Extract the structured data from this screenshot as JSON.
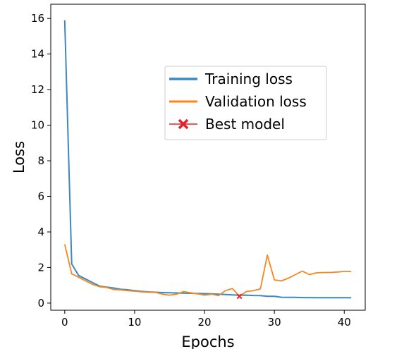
{
  "chart_data": {
    "type": "line",
    "xlabel": "Epochs",
    "ylabel": "Loss",
    "xlim": [
      -2,
      43
    ],
    "ylim": [
      -0.4,
      16.8
    ],
    "xticks": [
      0,
      10,
      20,
      30,
      40
    ],
    "yticks": [
      0,
      2,
      4,
      6,
      8,
      10,
      12,
      14,
      16
    ],
    "grid": false,
    "legend_position": "center-right",
    "series": [
      {
        "name": "Training loss",
        "color": "#3b88c3",
        "x": [
          0,
          1,
          2,
          3,
          4,
          5,
          6,
          7,
          8,
          9,
          10,
          11,
          12,
          13,
          14,
          15,
          16,
          17,
          18,
          19,
          20,
          21,
          22,
          23,
          24,
          25,
          26,
          27,
          28,
          29,
          30,
          31,
          32,
          33,
          34,
          35,
          36,
          37,
          38,
          39,
          40,
          41
        ],
        "values": [
          15.9,
          2.2,
          1.55,
          1.35,
          1.15,
          0.95,
          0.9,
          0.85,
          0.78,
          0.75,
          0.7,
          0.66,
          0.63,
          0.61,
          0.59,
          0.58,
          0.57,
          0.56,
          0.55,
          0.54,
          0.53,
          0.52,
          0.5,
          0.48,
          0.46,
          0.44,
          0.45,
          0.43,
          0.42,
          0.38,
          0.38,
          0.33,
          0.32,
          0.32,
          0.31,
          0.31,
          0.3,
          0.3,
          0.3,
          0.3,
          0.3,
          0.3
        ]
      },
      {
        "name": "Validation loss",
        "color": "#f5871f",
        "x": [
          0,
          1,
          2,
          3,
          4,
          5,
          6,
          7,
          8,
          9,
          10,
          11,
          12,
          13,
          14,
          15,
          16,
          17,
          18,
          19,
          20,
          21,
          22,
          23,
          24,
          25,
          26,
          27,
          28,
          29,
          30,
          31,
          32,
          33,
          34,
          35,
          36,
          37,
          38,
          39,
          40,
          41
        ],
        "values": [
          3.3,
          1.65,
          1.45,
          1.25,
          1.05,
          0.92,
          0.88,
          0.76,
          0.74,
          0.7,
          0.67,
          0.63,
          0.62,
          0.6,
          0.5,
          0.45,
          0.5,
          0.65,
          0.58,
          0.52,
          0.45,
          0.5,
          0.42,
          0.7,
          0.82,
          0.38,
          0.65,
          0.7,
          0.8,
          2.7,
          1.3,
          1.25,
          1.4,
          1.6,
          1.8,
          1.6,
          1.7,
          1.72,
          1.72,
          1.75,
          1.78,
          1.78
        ]
      }
    ],
    "markers": [
      {
        "name": "Best model",
        "color": "#e8202a",
        "x": 25,
        "y": 0.38,
        "symbol": "x"
      }
    ]
  }
}
